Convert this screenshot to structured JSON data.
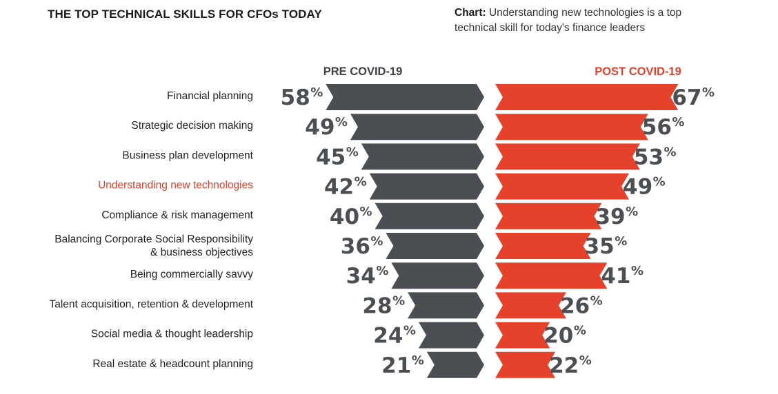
{
  "header": {
    "title": "THE TOP TECHNICAL SKILLS FOR CFOs TODAY",
    "caption_bold": "Chart:",
    "caption_text": "Understanding new technologies is a top technical skill for today's finance leaders"
  },
  "colors": {
    "pre": "#4b4f53",
    "post": "#e5412b",
    "highlight": "#e03e2a",
    "value_text": "#4b4f53"
  },
  "chart_data": {
    "type": "bar",
    "orientation": "horizontal-diverging",
    "title": "THE TOP TECHNICAL SKILLS FOR CFOs TODAY",
    "unit": "%",
    "highlight_category": "Understanding new technologies",
    "categories": [
      [
        "Financial planning"
      ],
      [
        "Strategic decision making"
      ],
      [
        "Business plan development"
      ],
      [
        "Understanding new technologies"
      ],
      [
        "Compliance & risk management"
      ],
      [
        "Balancing Corporate Social Responsibility",
        "& business objectives"
      ],
      [
        "Being commercially savvy"
      ],
      [
        "Talent acquisition, retention & development"
      ],
      [
        "Social media & thought leadership"
      ],
      [
        "Real estate & headcount planning"
      ]
    ],
    "series": [
      {
        "name": "PRE COVID-19",
        "side": "left",
        "values": [
          58,
          49,
          45,
          42,
          40,
          36,
          34,
          28,
          24,
          21
        ]
      },
      {
        "name": "POST COVID-19",
        "side": "right",
        "values": [
          67,
          56,
          53,
          49,
          39,
          35,
          41,
          26,
          20,
          22
        ]
      }
    ]
  }
}
